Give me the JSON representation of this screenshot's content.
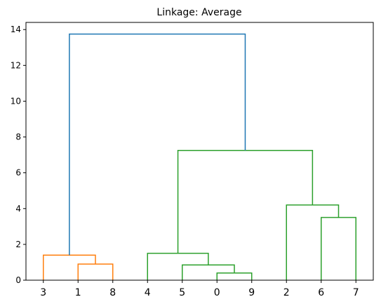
{
  "chart_data": {
    "type": "dendrogram",
    "title": "Linkage: Average",
    "xlabel": "",
    "ylabel": "",
    "ylim": [
      0,
      14.4
    ],
    "yticks": [
      0,
      2,
      4,
      6,
      8,
      10,
      12,
      14
    ],
    "leaf_order": [
      "3",
      "1",
      "8",
      "4",
      "5",
      "0",
      "9",
      "2",
      "6",
      "7"
    ],
    "grid": false,
    "colors": {
      "cluster_1": "#ff7f0e",
      "cluster_2": "#2ca02c",
      "root": "#1f77b4"
    },
    "merges": [
      {
        "left": "1",
        "right": "8",
        "height": 0.9,
        "color": "cluster_1"
      },
      {
        "left": "3",
        "right": "{1,8}",
        "height": 1.4,
        "color": "cluster_1"
      },
      {
        "left": "0",
        "right": "9",
        "height": 0.4,
        "color": "cluster_2"
      },
      {
        "left": "5",
        "right": "{0,9}",
        "height": 0.85,
        "color": "cluster_2"
      },
      {
        "left": "4",
        "right": "{5,0,9}",
        "height": 1.5,
        "color": "cluster_2"
      },
      {
        "left": "6",
        "right": "7",
        "height": 3.5,
        "color": "cluster_2"
      },
      {
        "left": "2",
        "right": "{6,7}",
        "height": 4.2,
        "color": "cluster_2"
      },
      {
        "left": "{4,5,0,9}",
        "right": "{2,6,7}",
        "height": 7.25,
        "color": "cluster_2"
      },
      {
        "left": "{3,1,8}",
        "right": "{4,5,0,9,2,6,7}",
        "height": 13.75,
        "color": "root"
      }
    ]
  }
}
